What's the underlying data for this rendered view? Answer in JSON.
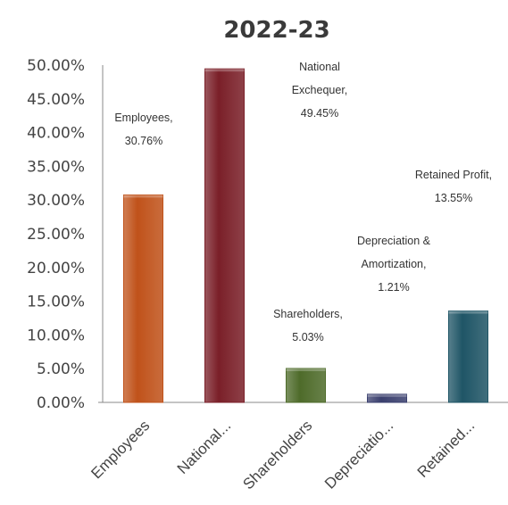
{
  "chart_data": {
    "type": "bar",
    "title": "2022-23",
    "xlabel": "",
    "ylabel": "",
    "ylim": [
      0,
      50
    ],
    "y_tick_labels": [
      "0.00%",
      "5.00%",
      "10.00%",
      "15.00%",
      "20.00%",
      "25.00%",
      "30.00%",
      "35.00%",
      "40.00%",
      "45.00%",
      "50.00%"
    ],
    "categories": [
      "Employees",
      "National...",
      "Shareholders",
      "Depreciatio...",
      "Retained..."
    ],
    "values": [
      30.76,
      49.45,
      5.03,
      1.21,
      13.55
    ],
    "data_labels": [
      [
        "Employees,",
        "30.76%"
      ],
      [
        "National",
        "Exchequer,",
        "49.45%"
      ],
      [
        "Shareholders,",
        "5.03%"
      ],
      [
        "Depreciation &",
        "Amortization,",
        "1.21%"
      ],
      [
        "Retained Profit,",
        "13.55%"
      ]
    ],
    "colors": [
      "#c0521a",
      "#7a1f28",
      "#4e6b2a",
      "#3a3f6e",
      "#1f5566"
    ],
    "grid": false,
    "legend": "none"
  }
}
